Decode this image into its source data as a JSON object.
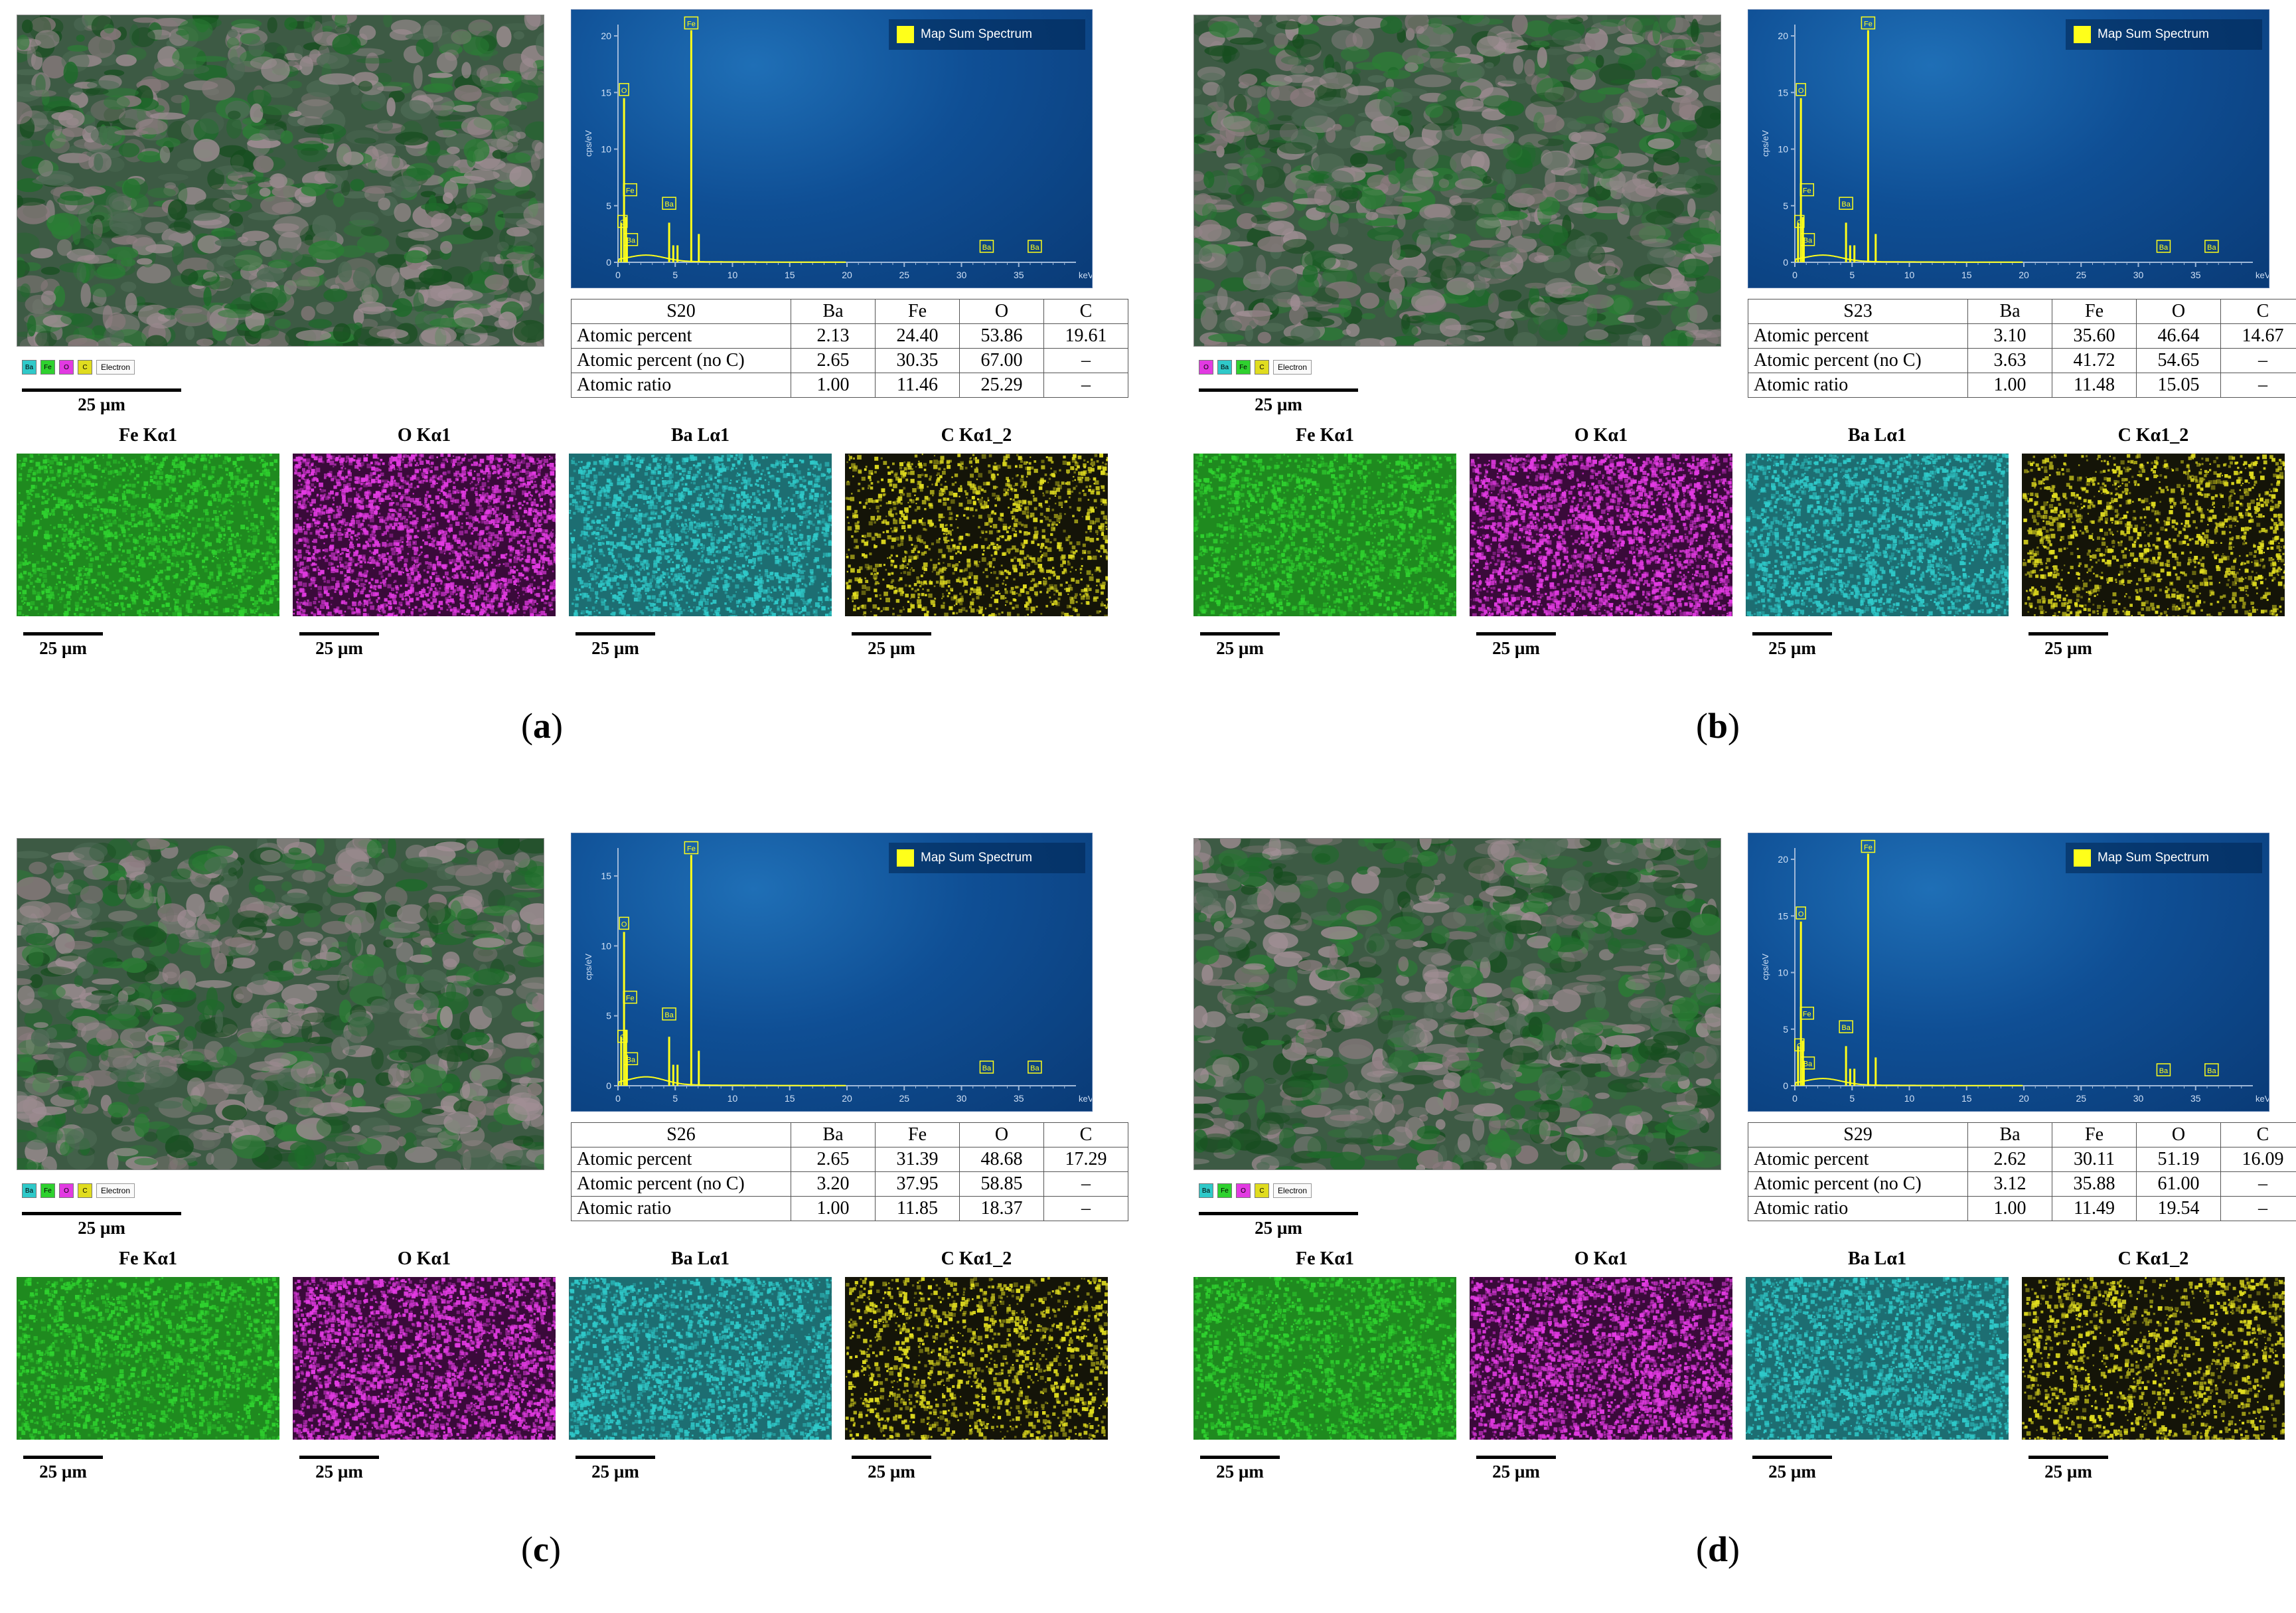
{
  "map_titles": [
    "Fe Kα1",
    "O Kα1",
    "Ba Lα1",
    "C Kα1_2"
  ],
  "scale_label": "25 µm",
  "legend_electron": "Electron",
  "spectrum_legend": "Map Sum Spectrum",
  "spectrum_axis": {
    "xlabel": "keV",
    "ylabel": "cps/eV",
    "xticks": [
      "0",
      "5",
      "10",
      "15",
      "20",
      "25",
      "30",
      "35"
    ]
  },
  "table_headers": [
    "Ba",
    "Fe",
    "O",
    "C"
  ],
  "row_labels": [
    "Atomic percent",
    "Atomic percent (no C)",
    "Atomic ratio"
  ],
  "colors": {
    "spectrum_bg": "#0f4f95",
    "spectrum_line": "#ffff1a",
    "Fe": "#2fd12f",
    "O": "#e23ae2",
    "Ba": "#2fc9c9",
    "C": "#e0dc1f"
  },
  "panels": [
    {
      "id": "a",
      "caption": "a",
      "sample": "S20",
      "legend_chips": [
        "Ba",
        "Fe",
        "O",
        "C"
      ],
      "yticks": [
        "0",
        "5",
        "10",
        "15",
        "20"
      ],
      "rows": [
        [
          "2.13",
          "24.40",
          "53.86",
          "19.61"
        ],
        [
          "2.65",
          "30.35",
          "67.00",
          "–"
        ],
        [
          "1.00",
          "11.46",
          "25.29",
          "–"
        ]
      ]
    },
    {
      "id": "b",
      "caption": "b",
      "sample": "S23",
      "legend_chips": [
        "O",
        "Ba",
        "Fe",
        "C"
      ],
      "yticks": [
        "0",
        "5",
        "10",
        "15",
        "20"
      ],
      "rows": [
        [
          "3.10",
          "35.60",
          "46.64",
          "14.67"
        ],
        [
          "3.63",
          "41.72",
          "54.65",
          "–"
        ],
        [
          "1.00",
          "11.48",
          "15.05",
          "–"
        ]
      ]
    },
    {
      "id": "c",
      "caption": "c",
      "sample": "S26",
      "legend_chips": [
        "Ba",
        "Fe",
        "O",
        "C"
      ],
      "yticks": [
        "0",
        "5",
        "10",
        "15"
      ],
      "rows": [
        [
          "2.65",
          "31.39",
          "48.68",
          "17.29"
        ],
        [
          "3.20",
          "37.95",
          "58.85",
          "–"
        ],
        [
          "1.00",
          "11.85",
          "18.37",
          "–"
        ]
      ]
    },
    {
      "id": "d",
      "caption": "d",
      "sample": "S29",
      "legend_chips": [
        "Ba",
        "Fe",
        "O",
        "C"
      ],
      "yticks": [
        "0",
        "5",
        "10",
        "15",
        "20"
      ],
      "rows": [
        [
          "2.62",
          "30.11",
          "51.19",
          "16.09"
        ],
        [
          "3.12",
          "35.88",
          "61.00",
          "–"
        ],
        [
          "1.00",
          "11.49",
          "19.54",
          "–"
        ]
      ]
    }
  ]
}
